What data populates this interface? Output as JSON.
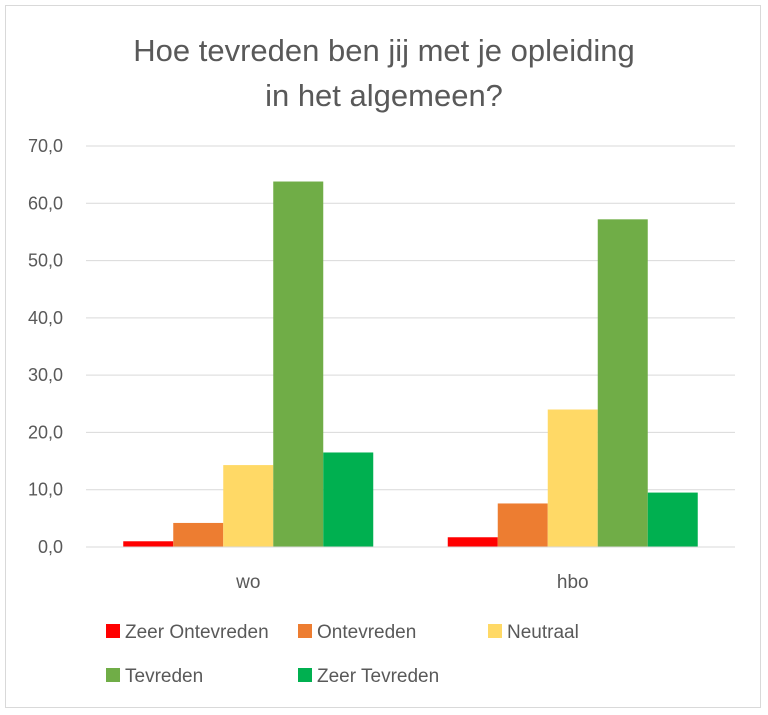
{
  "chart_data": {
    "type": "bar",
    "title_lines": [
      "Hoe tevreden ben jij met je opleiding",
      "in het algemeen?"
    ],
    "categories": [
      "wo",
      "hbo"
    ],
    "series": [
      {
        "name": "Zeer Ontevreden",
        "color": "#ff0000",
        "values": [
          1.0,
          1.7
        ]
      },
      {
        "name": "Ontevreden",
        "color": "#ed7d31",
        "values": [
          4.2,
          7.6
        ]
      },
      {
        "name": "Neutraal",
        "color": "#ffd966",
        "values": [
          14.3,
          24.0
        ]
      },
      {
        "name": "Tevreden",
        "color": "#70ad47",
        "values": [
          63.8,
          57.2
        ]
      },
      {
        "name": "Zeer Tevreden",
        "color": "#00b050",
        "values": [
          16.5,
          9.5
        ]
      }
    ],
    "ylim": [
      0,
      70
    ],
    "yticks": [
      "0,0",
      "10,0",
      "20,0",
      "30,0",
      "40,0",
      "50,0",
      "60,0",
      "70,0"
    ],
    "grid": true,
    "legend_position": "bottom"
  }
}
